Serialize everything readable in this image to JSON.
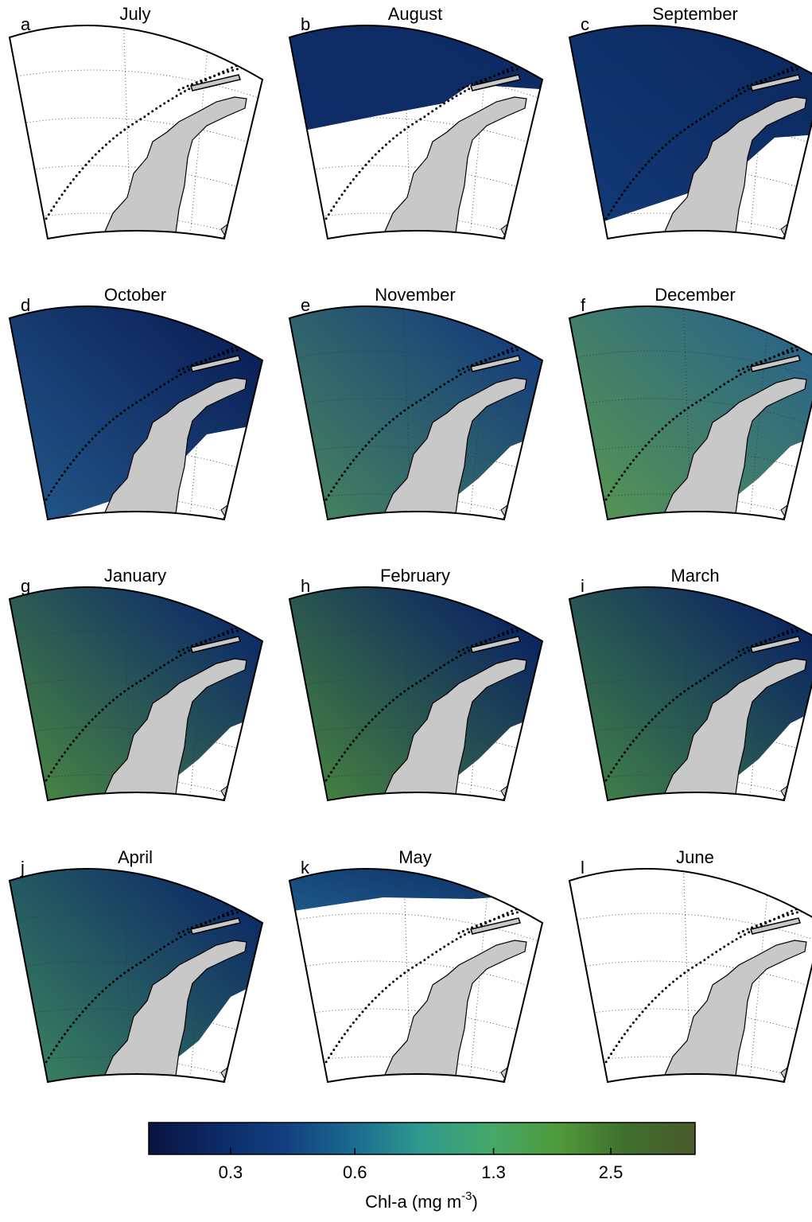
{
  "figure": {
    "panels": [
      {
        "letter": "a",
        "title": "July"
      },
      {
        "letter": "b",
        "title": "August"
      },
      {
        "letter": "c",
        "title": "September"
      },
      {
        "letter": "d",
        "title": "October"
      },
      {
        "letter": "e",
        "title": "November"
      },
      {
        "letter": "f",
        "title": "December"
      },
      {
        "letter": "g",
        "title": "January"
      },
      {
        "letter": "h",
        "title": "February"
      },
      {
        "letter": "i",
        "title": "March"
      },
      {
        "letter": "j",
        "title": "April"
      },
      {
        "letter": "k",
        "title": "May"
      },
      {
        "letter": "l",
        "title": "June"
      }
    ],
    "colorbar": {
      "label_main": "Chl-a (mg m",
      "label_sup": "-3",
      "label_end": ")",
      "scale": "log",
      "lim": [
        0.19,
        4
      ],
      "ticks": [
        0.3,
        0.6,
        1.3,
        2.5
      ],
      "colors": [
        "#08133f",
        "#0c2a66",
        "#123f80",
        "#1a6b8f",
        "#2f9a8e",
        "#45a86a",
        "#4f9a3a",
        "#3f6e2e",
        "#4a5a2a"
      ]
    }
  }
}
